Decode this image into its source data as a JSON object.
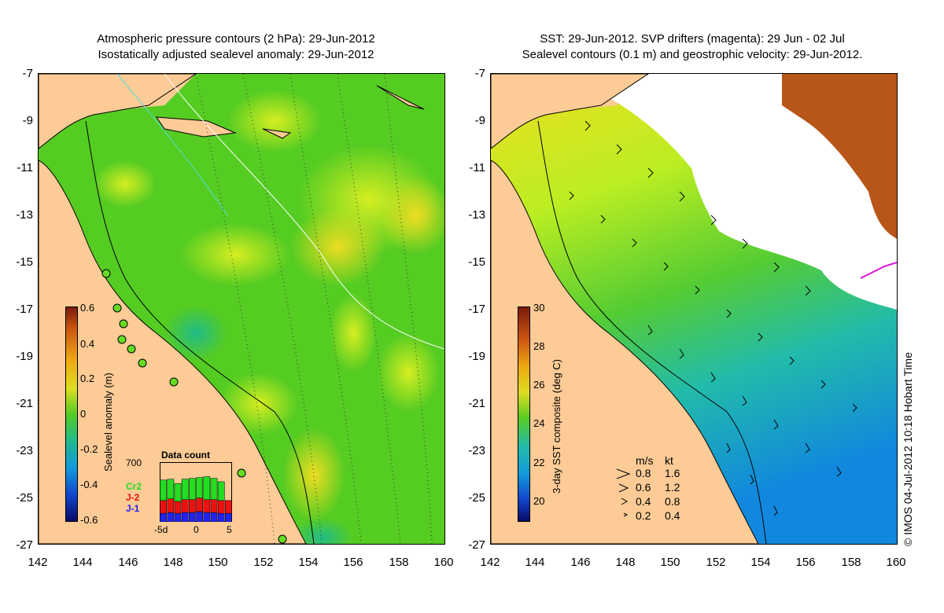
{
  "left_panel": {
    "title_line1": "Atmospheric pressure contours (2 hPa): 29-Jun-2012",
    "title_line2": "Isostatically adjusted sealevel anomaly: 29-Jun-2012",
    "colorbar": {
      "title": "Sealevel anomaly (m)",
      "ticks": [
        "0.6",
        "0.4",
        "0.2",
        "0",
        "-0.2",
        "-0.4",
        "-0.6"
      ],
      "range": [
        -0.6,
        0.6
      ]
    },
    "data_count": {
      "title": "Data count",
      "ymax_label": "700",
      "x_tick_labels": [
        "-5d",
        "0",
        "5"
      ],
      "series": [
        {
          "name": "Cr2",
          "color": "#22dd22",
          "values": [
            240,
            230,
            210,
            240,
            250,
            240,
            270,
            250,
            220,
            0
          ]
        },
        {
          "name": "J-2",
          "color": "#ee1111",
          "values": [
            150,
            160,
            140,
            150,
            150,
            160,
            150,
            150,
            150,
            150
          ]
        },
        {
          "name": "J-1",
          "color": "#2222ee",
          "values": [
            100,
            110,
            100,
            110,
            110,
            120,
            110,
            110,
            100,
            100
          ]
        }
      ]
    }
  },
  "right_panel": {
    "title_line1": "SST: 29-Jun-2012. SVP drifters (magenta): 29 Jun - 02 Jul",
    "title_line2": "Sealevel contours (0.1 m) and geostrophic velocity: 29-Jun-2012.",
    "colorbar": {
      "title": "3-day SST composite (deg C)",
      "ticks": [
        "30",
        "28",
        "26",
        "24",
        "22",
        "20"
      ],
      "range": [
        19,
        30
      ]
    },
    "velocity_legend": {
      "header_ms": "m/s",
      "header_kt": "kt",
      "rows": [
        {
          "ms": "0.8",
          "kt": "1.6"
        },
        {
          "ms": "0.6",
          "kt": "1.2"
        },
        {
          "ms": "0.4",
          "kt": "0.8"
        },
        {
          "ms": "0.2",
          "kt": "0.4"
        }
      ]
    },
    "credit": "© IMOS 04-Jul-2012 10:18 Hobart Time"
  },
  "map_axes": {
    "lat_ticks": [
      "-7",
      "-9",
      "-11",
      "-13",
      "-15",
      "-17",
      "-19",
      "-21",
      "-23",
      "-25",
      "-27"
    ],
    "lon_ticks": [
      "142",
      "144",
      "146",
      "148",
      "150",
      "152",
      "154",
      "156",
      "158",
      "160"
    ],
    "lat_range": [
      -27,
      -7
    ],
    "lon_range": [
      142,
      160
    ]
  },
  "colors": {
    "land": "#fccb96",
    "sla_mid": "#44cc22",
    "sst_warm": "#eedd22",
    "sst_cool": "#22bbbb",
    "cloud": "#ffffff",
    "contour": "#000000",
    "coast_lines": "#ccccff"
  }
}
